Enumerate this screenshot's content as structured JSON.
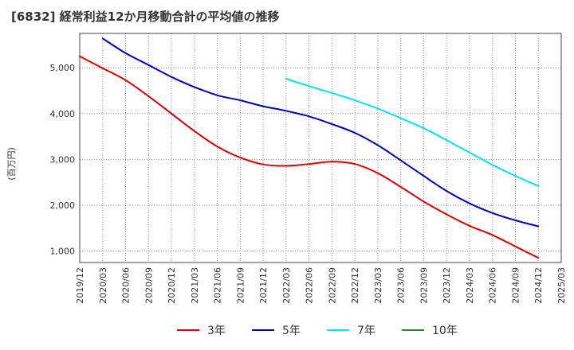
{
  "chart_data": {
    "type": "line",
    "title": "[6832]  経常利益12か月移動合計の平均値の推移",
    "ylabel": "(百万円)",
    "xlabel": "",
    "ylim": [
      750,
      5750
    ],
    "yticks": [
      1000,
      2000,
      3000,
      4000,
      5000
    ],
    "ytick_labels": [
      "1,000",
      "2,000",
      "3,000",
      "4,000",
      "5,000"
    ],
    "x_categories": [
      "2019/12",
      "2020/03",
      "2020/06",
      "2020/09",
      "2020/12",
      "2021/03",
      "2021/06",
      "2021/09",
      "2021/12",
      "2022/03",
      "2022/06",
      "2022/09",
      "2022/12",
      "2023/03",
      "2023/06",
      "2023/09",
      "2023/12",
      "2024/03",
      "2024/06",
      "2024/09",
      "2024/12",
      "2025/03"
    ],
    "grid": true,
    "legend_position": "bottom",
    "series": [
      {
        "name": "3年",
        "color": "#dd0000",
        "values": [
          5250,
          4990,
          4730,
          4380,
          4000,
          3620,
          3280,
          3040,
          2890,
          2860,
          2900,
          2950,
          2900,
          2700,
          2400,
          2080,
          1800,
          1550,
          1350,
          1100,
          850,
          null
        ]
      },
      {
        "name": "5年",
        "color": "#0000bb",
        "values": [
          null,
          5640,
          5320,
          5060,
          4800,
          4580,
          4400,
          4290,
          4160,
          4060,
          3940,
          3770,
          3580,
          3310,
          2980,
          2640,
          2310,
          2040,
          1830,
          1670,
          1540,
          null
        ]
      },
      {
        "name": "7年",
        "color": "#00e5ee",
        "values": [
          null,
          null,
          null,
          null,
          null,
          null,
          null,
          null,
          null,
          4760,
          4600,
          4450,
          4290,
          4110,
          3900,
          3680,
          3420,
          3150,
          2880,
          2640,
          2420,
          null
        ]
      },
      {
        "name": "10年",
        "color": "#228b22",
        "values": [
          null,
          null,
          null,
          null,
          null,
          null,
          null,
          null,
          null,
          null,
          null,
          null,
          null,
          null,
          null,
          null,
          null,
          null,
          null,
          null,
          null,
          null
        ]
      }
    ]
  }
}
